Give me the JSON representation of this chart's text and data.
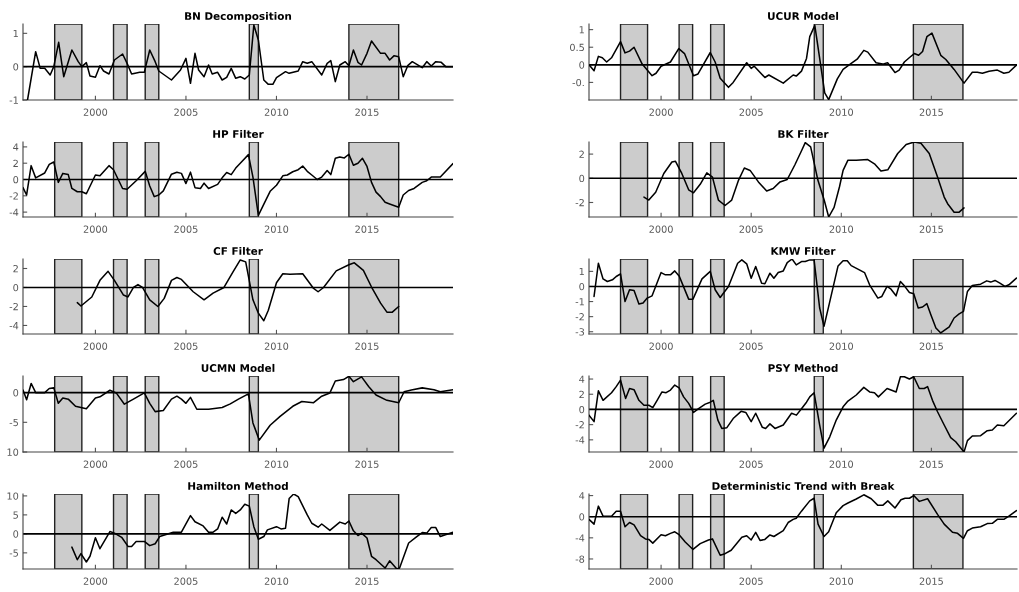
{
  "chart_data": [
    {
      "type": "line",
      "title": "BN Decomposition",
      "xlim": [
        1996,
        2019.75
      ],
      "xticks": [
        2000,
        2005,
        2010,
        2015
      ],
      "ylim": [
        -1,
        1.28
      ],
      "yticks": [
        -1,
        0,
        1
      ],
      "ref_lines": [
        {
          "axis": "y",
          "value": 0,
          "color": "#000000"
        }
      ],
      "bands": [
        {
          "axis": "x",
          "from": 1997.75,
          "to": 1999.25,
          "color": "#cccccc"
        },
        {
          "axis": "x",
          "from": 2001.0,
          "to": 2001.75,
          "color": "#cccccc"
        },
        {
          "axis": "x",
          "from": 2002.75,
          "to": 2003.5,
          "color": "#cccccc"
        },
        {
          "axis": "x",
          "from": 2008.5,
          "to": 2009.0,
          "color": "#cccccc"
        },
        {
          "axis": "x",
          "from": 2014.0,
          "to": 2016.75,
          "color": "#cccccc"
        }
      ],
      "series": [
        {
          "color": "#000000",
          "x": [
            1996.25,
            1996.7,
            1996.95,
            1997.2,
            1997.5,
            1997.7,
            1997.97,
            1998.25,
            1998.7,
            1999.05,
            1999.25,
            1999.5,
            1999.7,
            2000.0,
            2000.25,
            2000.45,
            2000.75,
            2001.05,
            2001.5,
            2001.75,
            2002.0,
            2002.45,
            2002.7,
            2003.0,
            2003.3,
            2003.5,
            2004.2,
            2004.7,
            2005.0,
            2005.25,
            2005.5,
            2005.7,
            2006.0,
            2006.25,
            2006.45,
            2006.75,
            2007.0,
            2007.25,
            2007.5,
            2007.75,
            2008.0,
            2008.25,
            2008.5,
            2008.75,
            2009.0,
            2009.3,
            2009.55,
            2009.8,
            2010.0,
            2010.5,
            2010.7,
            2011.2,
            2011.45,
            2011.7,
            2011.95,
            2012.5,
            2012.8,
            2013.0,
            2013.25,
            2013.5,
            2013.8,
            2014.0,
            2014.25,
            2014.5,
            2014.7,
            2015.0,
            2015.25,
            2015.75,
            2016.0,
            2016.25,
            2016.5,
            2016.75,
            2017.0,
            2017.25,
            2017.5,
            2018.05,
            2018.3,
            2018.55,
            2018.8,
            2019.1,
            2019.35,
            2019.75
          ],
          "values": [
            -1.0,
            0.45,
            -0.05,
            -0.05,
            -0.25,
            0,
            0.73,
            -0.3,
            0.5,
            0.15,
            0,
            0.12,
            -0.28,
            -0.32,
            0.03,
            -0.13,
            -0.22,
            0.2,
            0.38,
            0.1,
            -0.22,
            -0.17,
            -0.17,
            0.5,
            0.15,
            -0.13,
            -0.4,
            -0.1,
            0.25,
            -0.5,
            0.4,
            -0.1,
            -0.3,
            0.05,
            -0.22,
            -0.17,
            -0.4,
            -0.32,
            -0.05,
            -0.35,
            -0.3,
            -0.37,
            -0.25,
            1.25,
            0.8,
            -0.4,
            -0.53,
            -0.53,
            -0.33,
            -0.15,
            -0.2,
            -0.13,
            0.15,
            0.1,
            0.15,
            -0.25,
            0.1,
            0.18,
            -0.45,
            0.05,
            0.15,
            0.03,
            0.5,
            0.13,
            0.05,
            0.4,
            0.77,
            0.4,
            0.4,
            0.2,
            0.33,
            0.3,
            -0.3,
            0.03,
            0.15,
            -0.03,
            0.15,
            0.02,
            0.15,
            0.13,
            0,
            0
          ]
        }
      ]
    },
    {
      "type": "line",
      "title": "UCUR Model",
      "xlim": [
        1996,
        2019.75
      ],
      "xticks": [
        2000,
        2005,
        2010,
        2015
      ],
      "ylim": [
        -1,
        1.16
      ],
      "yticks": [
        {
          "value": -0.5,
          "label": "-0."
        },
        0,
        0.5,
        1
      ],
      "ref_lines": [
        {
          "axis": "y",
          "value": 0,
          "color": "#000000"
        }
      ],
      "bands": [
        {
          "axis": "x",
          "from": 1997.75,
          "to": 1999.25,
          "color": "#cccccc"
        },
        {
          "axis": "x",
          "from": 2001.0,
          "to": 2001.75,
          "color": "#cccccc"
        },
        {
          "axis": "x",
          "from": 2002.75,
          "to": 2003.5,
          "color": "#cccccc"
        },
        {
          "axis": "x",
          "from": 2008.5,
          "to": 2009.0,
          "color": "#cccccc"
        },
        {
          "axis": "x",
          "from": 2014.0,
          "to": 2016.75,
          "color": "#cccccc"
        }
      ],
      "series": [
        {
          "color": "#000000",
          "x": [
            1996.0,
            1996.28,
            1996.52,
            1996.74,
            1996.98,
            1997.25,
            1997.75,
            1998.0,
            1998.25,
            1998.5,
            1998.95,
            1999.5,
            1999.72,
            2000.0,
            2000.52,
            2000.98,
            2001.3,
            2001.8,
            2002.05,
            2002.73,
            2003.0,
            2003.28,
            2003.74,
            2004.0,
            2004.75,
            2005.0,
            2005.17,
            2005.76,
            2005.98,
            2006.78,
            2007.33,
            2007.5,
            2007.79,
            2008.07,
            2008.25,
            2008.53,
            2008.8,
            2009.08,
            2009.3,
            2009.78,
            2010.1,
            2010.55,
            2010.88,
            2011.25,
            2011.47,
            2011.93,
            2012.3,
            2012.57,
            2012.98,
            2013.21,
            2013.5,
            2013.77,
            2014.05,
            2014.29,
            2014.51,
            2014.75,
            2015.03,
            2015.52,
            2015.8,
            2016.26,
            2016.81,
            2017.27,
            2017.55,
            2017.83,
            2018.2,
            2018.66,
            2019.02,
            2019.3,
            2019.72
          ],
          "values": [
            0,
            -0.17,
            0.24,
            0.2,
            0.08,
            0.2,
            0.66,
            0.34,
            0.39,
            0.5,
            0.02,
            -0.31,
            -0.24,
            -0.04,
            0.08,
            0.46,
            0.32,
            -0.31,
            -0.26,
            0.35,
            0.08,
            -0.38,
            -0.64,
            -0.5,
            0.06,
            -0.1,
            -0.04,
            -0.36,
            -0.29,
            -0.52,
            -0.29,
            -0.32,
            -0.18,
            0.18,
            0.8,
            1.12,
            0.18,
            -0.8,
            -0.99,
            -0.4,
            -0.13,
            0.04,
            0.16,
            0.41,
            0.36,
            0.06,
            0.02,
            0.06,
            -0.22,
            -0.15,
            0.08,
            0.2,
            0.32,
            0.27,
            0.38,
            0.8,
            0.9,
            0.27,
            0.15,
            -0.13,
            -0.52,
            -0.21,
            -0.21,
            -0.24,
            -0.18,
            -0.15,
            -0.24,
            -0.21,
            -0.01
          ]
        }
      ]
    },
    {
      "type": "line",
      "title": "HP Filter",
      "xlim": [
        1996,
        2019.75
      ],
      "xticks": [
        2000,
        2005,
        2010,
        2015
      ],
      "ylim": [
        -4.6,
        4.6
      ],
      "yticks": [
        -4,
        -2,
        0,
        2,
        4
      ],
      "ref_lines": [
        {
          "axis": "y",
          "value": 0,
          "color": "#000000"
        }
      ],
      "bands": [
        {
          "axis": "x",
          "from": 1997.75,
          "to": 1999.25,
          "color": "#cccccc"
        },
        {
          "axis": "x",
          "from": 2001.0,
          "to": 2001.75,
          "color": "#cccccc"
        },
        {
          "axis": "x",
          "from": 2002.75,
          "to": 2003.5,
          "color": "#cccccc"
        },
        {
          "axis": "x",
          "from": 2008.5,
          "to": 2009.0,
          "color": "#cccccc"
        },
        {
          "axis": "x",
          "from": 2014.0,
          "to": 2016.75,
          "color": "#cccccc"
        }
      ],
      "series": [
        {
          "color": "#000000",
          "x": [
            1996.0,
            1996.2,
            1996.45,
            1996.7,
            1997.2,
            1997.45,
            1997.7,
            1997.95,
            1998.2,
            1998.5,
            1998.7,
            1999.0,
            1999.25,
            1999.5,
            2000.0,
            2000.25,
            2000.75,
            2001.0,
            2001.5,
            2001.75,
            2002.25,
            2002.75,
            2003.0,
            2003.25,
            2003.5,
            2003.75,
            2004.2,
            2004.5,
            2004.75,
            2005.0,
            2005.25,
            2005.5,
            2005.8,
            2006.0,
            2006.25,
            2006.75,
            2007.0,
            2007.25,
            2007.5,
            2007.75,
            2008.0,
            2008.45,
            2008.7,
            2009.0,
            2009.35,
            2009.65,
            2010.0,
            2010.35,
            2010.6,
            2010.9,
            2011.2,
            2011.45,
            2011.7,
            2011.95,
            2012.25,
            2012.5,
            2012.8,
            2013.0,
            2013.25,
            2013.5,
            2013.75,
            2014.0,
            2014.25,
            2014.5,
            2014.75,
            2015.0,
            2015.25,
            2015.5,
            2015.75,
            2016.0,
            2016.25,
            2016.75,
            2017.0,
            2017.3,
            2017.6,
            2018.05,
            2018.3,
            2018.55,
            2019.05,
            2019.75
          ],
          "values": [
            -1,
            -1.9,
            1.7,
            0.2,
            0.8,
            1.85,
            2.15,
            -0.35,
            0.75,
            0.6,
            -1.1,
            -1.5,
            -1.5,
            -1.75,
            0.55,
            0.45,
            1.7,
            1.2,
            -1.1,
            -1.2,
            -0.15,
            1.0,
            -0.8,
            -2.1,
            -1.9,
            -1.4,
            0.65,
            0.9,
            0.75,
            -0.5,
            0.9,
            -1,
            -1.1,
            -0.45,
            -1.1,
            -0.6,
            0.2,
            0.85,
            0.6,
            1.4,
            2.0,
            3.05,
            0.3,
            -4.4,
            -2.8,
            -1.45,
            -0.7,
            0.45,
            0.55,
            0.95,
            1.2,
            1.65,
            1.0,
            0.55,
            0,
            0.3,
            1.1,
            0.6,
            2.6,
            2.75,
            2.65,
            3.1,
            1.75,
            2.0,
            2.6,
            1.6,
            -0.35,
            -1.55,
            -2.1,
            -2.8,
            -3.0,
            -3.4,
            -1.9,
            -1.35,
            -1.1,
            -0.35,
            -0.15,
            0.3,
            0.3,
            1.95
          ]
        }
      ]
    },
    {
      "type": "line",
      "title": "BK Filter",
      "xlim": [
        1996,
        2019.75
      ],
      "xticks": [
        2000,
        2005,
        2010,
        2015
      ],
      "ylim": [
        -3.2,
        3.0
      ],
      "yticks": [
        -2,
        0,
        2
      ],
      "ref_lines": [
        {
          "axis": "y",
          "value": 0,
          "color": "#000000"
        }
      ],
      "bands": [
        {
          "axis": "x",
          "from": 1997.75,
          "to": 1999.25,
          "color": "#cccccc"
        },
        {
          "axis": "x",
          "from": 2001.0,
          "to": 2001.75,
          "color": "#cccccc"
        },
        {
          "axis": "x",
          "from": 2002.75,
          "to": 2003.5,
          "color": "#cccccc"
        },
        {
          "axis": "x",
          "from": 2008.5,
          "to": 2009.0,
          "color": "#cccccc"
        },
        {
          "axis": "x",
          "from": 2014.0,
          "to": 2016.75,
          "color": "#cccccc"
        }
      ],
      "series": [
        {
          "color": "#000000",
          "x": [
            1999.05,
            1999.32,
            1999.7,
            2000.15,
            2000.6,
            2000.8,
            2001.15,
            2001.53,
            2001.8,
            2002.17,
            2002.54,
            2002.85,
            2003.18,
            2003.55,
            2003.92,
            2004.3,
            2004.62,
            2004.94,
            2005.4,
            2005.86,
            2006.22,
            2006.6,
            2007.0,
            2007.42,
            2007.8,
            2008.0,
            2008.3,
            2008.7,
            2009.05,
            2009.3,
            2009.6,
            2009.9,
            2010.1,
            2010.37,
            2010.83,
            2011.47,
            2011.84,
            2012.2,
            2012.58,
            2013.13,
            2013.6,
            2014.05,
            2014.42,
            2014.88,
            2015.34,
            2015.71,
            2015.9,
            2016.26,
            2016.54,
            2016.81
          ],
          "values": [
            -1.55,
            -1.8,
            -1.15,
            0.4,
            1.35,
            1.4,
            0.4,
            -0.95,
            -1.2,
            -0.5,
            0.45,
            0.1,
            -1.8,
            -2.25,
            -1.8,
            -0.15,
            0.85,
            0.65,
            -0.3,
            -1.05,
            -0.85,
            -0.3,
            -0.1,
            1.1,
            2.3,
            2.95,
            2.6,
            -0.15,
            -1.8,
            -3.2,
            -2.4,
            -0.7,
            0.65,
            1.5,
            1.5,
            1.55,
            1.2,
            0.6,
            0.7,
            2.05,
            2.8,
            3.0,
            2.9,
            2.05,
            0.1,
            -1.55,
            -2.1,
            -2.8,
            -2.8,
            -2.45
          ]
        }
      ]
    },
    {
      "type": "line",
      "title": "CF Filter",
      "xlim": [
        1996,
        2019.75
      ],
      "xticks": [
        2000,
        2005,
        2010,
        2015
      ],
      "ylim": [
        -4.9,
        3
      ],
      "yticks": [
        -4,
        -2,
        0,
        2
      ],
      "ref_lines": [
        {
          "axis": "y",
          "value": 0,
          "color": "#000000"
        }
      ],
      "bands": [
        {
          "axis": "x",
          "from": 1997.75,
          "to": 1999.25,
          "color": "#cccccc"
        },
        {
          "axis": "x",
          "from": 2001.0,
          "to": 2001.75,
          "color": "#cccccc"
        },
        {
          "axis": "x",
          "from": 2002.75,
          "to": 2003.5,
          "color": "#cccccc"
        },
        {
          "axis": "x",
          "from": 2008.5,
          "to": 2009.0,
          "color": "#cccccc"
        },
        {
          "axis": "x",
          "from": 2014.0,
          "to": 2016.75,
          "color": "#cccccc"
        }
      ],
      "series": [
        {
          "color": "#000000",
          "x": [
            1999.0,
            1999.2,
            1999.8,
            2000.25,
            2000.7,
            2001.05,
            2001.55,
            2001.8,
            2002.1,
            2002.35,
            2002.6,
            2003.0,
            2003.45,
            2003.8,
            2004.2,
            2004.5,
            2004.75,
            2005.4,
            2006.0,
            2006.5,
            2007.1,
            2007.6,
            2008.0,
            2008.3,
            2008.7,
            2009.0,
            2009.3,
            2009.55,
            2010.0,
            2010.35,
            2010.75,
            2011.45,
            2012.05,
            2012.3,
            2012.6,
            2013.3,
            2014.0,
            2014.3,
            2014.8,
            2015.25,
            2015.75,
            2016.1,
            2016.4,
            2016.75
          ],
          "values": [
            -1.6,
            -1.95,
            -1.0,
            0.75,
            1.7,
            0.75,
            -0.8,
            -1.0,
            0,
            0.3,
            0,
            -1.3,
            -2.0,
            -1.15,
            0.75,
            1.05,
            0.85,
            -0.45,
            -1.3,
            -0.6,
            0,
            1.65,
            2.9,
            2.7,
            -1.3,
            -2.7,
            -3.5,
            -2.4,
            0.5,
            1.45,
            1.4,
            1.45,
            -0.1,
            -0.45,
            0,
            1.75,
            2.4,
            2.6,
            1.8,
            0.05,
            -1.65,
            -2.6,
            -2.6,
            -2.0
          ]
        }
      ]
    },
    {
      "type": "line",
      "title": "KMW Filter",
      "xlim": [
        1996,
        2019.75
      ],
      "xticks": [
        2000,
        2005,
        2010,
        2015
      ],
      "ylim": [
        -3.15,
        1.82
      ],
      "yticks": [
        -3,
        -2,
        -1,
        0,
        1
      ],
      "ref_lines": [
        {
          "axis": "y",
          "value": 0,
          "color": "#000000"
        }
      ],
      "bands": [
        {
          "axis": "x",
          "from": 1997.75,
          "to": 1999.25,
          "color": "#cccccc"
        },
        {
          "axis": "x",
          "from": 2001.0,
          "to": 2001.75,
          "color": "#cccccc"
        },
        {
          "axis": "x",
          "from": 2002.75,
          "to": 2003.5,
          "color": "#cccccc"
        },
        {
          "axis": "x",
          "from": 2008.5,
          "to": 2009.0,
          "color": "#cccccc"
        },
        {
          "axis": "x",
          "from": 2014.0,
          "to": 2016.75,
          "color": "#cccccc"
        }
      ],
      "series": [
        {
          "color": "#000000",
          "x": [
            1996.28,
            1996.52,
            1996.78,
            1997.02,
            1997.3,
            1997.51,
            1997.75,
            1998.0,
            1998.25,
            1998.5,
            1998.77,
            1999.0,
            1999.23,
            1999.5,
            2000.0,
            2000.24,
            2000.52,
            2000.76,
            2001.0,
            2001.53,
            2001.77,
            2002.27,
            2002.73,
            2003.0,
            2003.28,
            2003.74,
            2004.25,
            2004.48,
            2004.75,
            2005.0,
            2005.25,
            2005.58,
            2005.76,
            2006.04,
            2006.26,
            2006.5,
            2006.78,
            2007.0,
            2007.27,
            2007.5,
            2007.79,
            2008.0,
            2008.25,
            2008.49,
            2008.8,
            2009.04,
            2009.3,
            2009.82,
            2010.1,
            2010.33,
            2010.55,
            2011.0,
            2011.29,
            2011.57,
            2012.03,
            2012.25,
            2012.54,
            2012.76,
            2013.04,
            2013.28,
            2013.5,
            2013.78,
            2014.02,
            2014.27,
            2014.51,
            2014.75,
            2014.97,
            2015.25,
            2015.52,
            2015.99,
            2016.26,
            2016.54,
            2016.78,
            2017.0,
            2017.27,
            2017.73,
            2018.07,
            2018.29,
            2018.53,
            2018.8,
            2019.08,
            2019.3,
            2019.72
          ],
          "values": [
            -0.66,
            1.54,
            0.5,
            0.33,
            0.44,
            0.66,
            0.84,
            -1.0,
            -0.22,
            -0.26,
            -1.16,
            -1.1,
            -0.77,
            -0.62,
            0.92,
            0.77,
            0.77,
            1.03,
            0.7,
            -0.84,
            -0.84,
            0.5,
            1.0,
            -0.22,
            -0.73,
            0,
            1.54,
            1.76,
            1.5,
            0.55,
            1.32,
            0.22,
            0.18,
            0.88,
            0.55,
            0.92,
            1.03,
            1.58,
            1.82,
            1.43,
            1.65,
            1.65,
            1.76,
            1.76,
            -1.43,
            -2.64,
            -1.32,
            1.36,
            1.71,
            1.71,
            1.38,
            1.1,
            0.92,
            0.11,
            -0.77,
            -0.66,
            0,
            -0.18,
            -0.62,
            0.33,
            0.04,
            -0.4,
            -0.48,
            -1.43,
            -1.36,
            -1.14,
            -1.87,
            -2.75,
            -3.08,
            -2.68,
            -2.09,
            -1.82,
            -1.65,
            -0.33,
            0.07,
            0.15,
            0.37,
            0.29,
            0.4,
            0.22,
            0,
            0.11,
            0.55
          ]
        }
      ]
    },
    {
      "type": "line",
      "title": "UCMN Model",
      "xlim": [
        1996,
        2019.75
      ],
      "xticks": [
        2000,
        2005,
        2010,
        2015
      ],
      "ylim": [
        -10,
        2.8
      ],
      "yticks": [
        {
          "value": -10,
          "label": "10"
        },
        -5,
        0
      ],
      "ref_lines": [
        {
          "axis": "y",
          "value": 0,
          "color": "#000000"
        }
      ],
      "bands": [
        {
          "axis": "x",
          "from": 1997.75,
          "to": 1999.25,
          "color": "#cccccc"
        },
        {
          "axis": "x",
          "from": 2001.0,
          "to": 2001.75,
          "color": "#cccccc"
        },
        {
          "axis": "x",
          "from": 2002.75,
          "to": 2003.5,
          "color": "#cccccc"
        },
        {
          "axis": "x",
          "from": 2008.5,
          "to": 2009.0,
          "color": "#cccccc"
        },
        {
          "axis": "x",
          "from": 2014.0,
          "to": 2016.75,
          "color": "#cccccc"
        }
      ],
      "series": [
        {
          "color": "#000000",
          "x": [
            1996.0,
            1996.2,
            1996.45,
            1996.7,
            1997.2,
            1997.45,
            1997.7,
            1997.95,
            1998.2,
            1998.5,
            1998.9,
            1999.5,
            2000.0,
            2000.25,
            2000.8,
            2001.15,
            2001.6,
            2002.1,
            2002.7,
            2003.0,
            2003.3,
            2003.75,
            2004.2,
            2004.5,
            2004.75,
            2005.0,
            2005.25,
            2005.6,
            2006.25,
            2007.0,
            2007.45,
            2007.9,
            2008.45,
            2008.7,
            2009.05,
            2009.65,
            2010.2,
            2010.9,
            2011.4,
            2012.05,
            2012.5,
            2012.95,
            2013.25,
            2013.7,
            2014.0,
            2014.25,
            2014.7,
            2015.1,
            2015.5,
            2016.1,
            2016.75,
            2017.05,
            2017.45,
            2018.05,
            2018.7,
            2019.05,
            2019.75
          ],
          "values": [
            0.45,
            -1.2,
            1.55,
            0,
            0,
            0.7,
            0.8,
            -1.8,
            -0.9,
            -1.1,
            -2.3,
            -2.7,
            -0.9,
            -0.7,
            0.4,
            -0.05,
            -1.95,
            -1.1,
            -0.05,
            -1.8,
            -3.2,
            -3.0,
            -1.1,
            -0.6,
            -1.1,
            -1.8,
            -0.8,
            -2.8,
            -2.8,
            -2.5,
            -1.9,
            -1.1,
            -0.2,
            -5.1,
            -8.0,
            -5.5,
            -4.0,
            -2.3,
            -1.5,
            -1.7,
            -0.6,
            -0.05,
            1.95,
            2.2,
            2.75,
            1.85,
            2.65,
            1.0,
            -0.4,
            -1.3,
            -1.7,
            0.15,
            0.45,
            0.8,
            0.5,
            0.15,
            0.5
          ]
        }
      ]
    },
    {
      "type": "line",
      "title": "PSY Method",
      "xlim": [
        1996,
        2019.75
      ],
      "xticks": [
        2000,
        2005,
        2010,
        2015
      ],
      "ylim": [
        -5.6,
        4.4
      ],
      "yticks": [
        -4,
        -2,
        0,
        2,
        4
      ],
      "ref_lines": [
        {
          "axis": "y",
          "value": 0,
          "color": "#000000"
        }
      ],
      "bands": [
        {
          "axis": "x",
          "from": 1997.75,
          "to": 1999.25,
          "color": "#cccccc"
        },
        {
          "axis": "x",
          "from": 2001.0,
          "to": 2001.75,
          "color": "#cccccc"
        },
        {
          "axis": "x",
          "from": 2002.75,
          "to": 2003.5,
          "color": "#cccccc"
        },
        {
          "axis": "x",
          "from": 2008.5,
          "to": 2009.0,
          "color": "#cccccc"
        },
        {
          "axis": "x",
          "from": 2014.0,
          "to": 2016.75,
          "color": "#cccccc"
        }
      ],
      "series": [
        {
          "color": "#000000",
          "x": [
            1996.0,
            1996.28,
            1996.52,
            1996.78,
            1997.25,
            1997.51,
            1997.75,
            1998.03,
            1998.25,
            1998.5,
            1998.77,
            1999.05,
            1999.32,
            1999.54,
            1999.78,
            2000.05,
            2000.28,
            2000.52,
            2000.76,
            2001.0,
            2001.25,
            2001.53,
            2001.8,
            2002.08,
            2002.45,
            2002.73,
            2002.9,
            2003.15,
            2003.37,
            2003.65,
            2004.0,
            2004.44,
            2004.7,
            2005.0,
            2005.25,
            2005.62,
            2005.8,
            2006.04,
            2006.32,
            2006.78,
            2007.24,
            2007.51,
            2007.79,
            2008.07,
            2008.25,
            2008.49,
            2008.8,
            2009.04,
            2009.36,
            2009.72,
            2010.1,
            2010.37,
            2010.83,
            2011.25,
            2011.57,
            2011.84,
            2012.06,
            2012.54,
            2012.76,
            2013.04,
            2013.28,
            2013.5,
            2013.78,
            2014.02,
            2014.33,
            2014.6,
            2014.79,
            2015.06,
            2015.34,
            2015.71,
            2016.07,
            2016.35,
            2016.81,
            2017.0,
            2017.27,
            2017.73,
            2018.1,
            2018.38,
            2018.66,
            2019.02,
            2019.72
          ],
          "values": [
            -0.75,
            -1.6,
            2.45,
            1.2,
            2.2,
            3.0,
            3.85,
            1.45,
            2.75,
            2.6,
            1.2,
            0.55,
            0.55,
            0.25,
            1.2,
            2.3,
            2.2,
            2.55,
            3.2,
            2.85,
            1.65,
            0.8,
            -0.4,
            0.1,
            0.7,
            0.95,
            1.2,
            -1.4,
            -2.5,
            -2.4,
            -1.2,
            -0.25,
            -0.4,
            -1.6,
            -0.5,
            -2.35,
            -2.5,
            -1.9,
            -2.5,
            -2.05,
            -0.5,
            -0.75,
            0.1,
            0.95,
            1.65,
            2.2,
            -2.05,
            -5.1,
            -3.6,
            -1.4,
            0.35,
            1.1,
            1.9,
            2.9,
            2.3,
            2.2,
            1.65,
            2.75,
            2.55,
            2.3,
            4.3,
            4.3,
            4.0,
            4.3,
            2.75,
            2.75,
            3.0,
            1.2,
            -0.3,
            -2.05,
            -3.7,
            -4.25,
            -5.6,
            -4.1,
            -3.5,
            -3.45,
            -2.8,
            -2.7,
            -2.05,
            -2.15,
            -0.5
          ]
        }
      ]
    },
    {
      "type": "line",
      "title": "Hamilton Method",
      "xlim": [
        1996,
        2019.75
      ],
      "xticks": [
        2000,
        2005,
        2010,
        2015
      ],
      "ylim": [
        -9.25,
        10.5
      ],
      "yticks": [
        -5,
        0,
        5,
        10
      ],
      "ref_lines": [
        {
          "axis": "y",
          "value": 0,
          "color": "#000000"
        }
      ],
      "bands": [
        {
          "axis": "x",
          "from": 1997.75,
          "to": 1999.25,
          "color": "#cccccc"
        },
        {
          "axis": "x",
          "from": 2001.0,
          "to": 2001.75,
          "color": "#cccccc"
        },
        {
          "axis": "x",
          "from": 2002.75,
          "to": 2003.5,
          "color": "#cccccc"
        },
        {
          "axis": "x",
          "from": 2008.5,
          "to": 2009.0,
          "color": "#cccccc"
        },
        {
          "axis": "x",
          "from": 2014.0,
          "to": 2016.75,
          "color": "#cccccc"
        }
      ],
      "series": [
        {
          "color": "#000000",
          "x": [
            1998.7,
            1999.0,
            1999.2,
            1999.5,
            1999.7,
            2000.0,
            2000.25,
            2000.8,
            2001.05,
            2001.45,
            2001.8,
            2002.0,
            2002.25,
            2002.7,
            2003.0,
            2003.3,
            2003.55,
            2004.3,
            2004.75,
            2005.25,
            2005.5,
            2005.95,
            2006.25,
            2006.5,
            2006.75,
            2007.0,
            2007.25,
            2007.5,
            2007.75,
            2008.0,
            2008.25,
            2008.5,
            2008.75,
            2009.0,
            2009.3,
            2009.5,
            2010.0,
            2010.25,
            2010.5,
            2010.7,
            2010.95,
            2011.2,
            2011.7,
            2011.95,
            2012.3,
            2012.5,
            2012.95,
            2013.5,
            2013.8,
            2014.0,
            2014.25,
            2014.5,
            2014.7,
            2015.0,
            2015.25,
            2015.5,
            2016.0,
            2016.25,
            2016.65,
            2016.8,
            2017.3,
            2017.75,
            2018.05,
            2018.3,
            2018.55,
            2018.8,
            2019.05,
            2019.75
          ],
          "values": [
            -3.5,
            -6.8,
            -5.2,
            -7.4,
            -5.9,
            -1.0,
            -3.9,
            0.6,
            0.2,
            -0.9,
            -3.3,
            -3.3,
            -2.0,
            -2.0,
            -3.1,
            -2.6,
            -0.7,
            0.45,
            0.45,
            4.8,
            3.2,
            2.1,
            0.45,
            0.45,
            1.3,
            4.4,
            2.6,
            6.3,
            5.4,
            6.3,
            7.8,
            7.3,
            1.9,
            -1.4,
            -0.7,
            1.05,
            1.9,
            1.3,
            1.5,
            9.3,
            10.5,
            9.8,
            5.0,
            2.8,
            1.75,
            2.6,
            0.9,
            3.1,
            2.6,
            3.4,
            0.8,
            -0.45,
            0.2,
            -1.1,
            -5.9,
            -6.8,
            -9.0,
            -7.1,
            -9.25,
            -9.0,
            -2.4,
            -0.7,
            0.35,
            0.2,
            1.65,
            1.65,
            -0.7,
            0.45
          ]
        }
      ]
    },
    {
      "type": "line",
      "title": "Deterministic Trend with Break",
      "xlim": [
        1996,
        2019.75
      ],
      "xticks": [
        2000,
        2005,
        2010,
        2015
      ],
      "ylim": [
        -9.9,
        4.3
      ],
      "yticks": [
        -8,
        -4,
        0,
        4
      ],
      "ref_lines": [
        {
          "axis": "y",
          "value": 0,
          "color": "#000000"
        }
      ],
      "bands": [
        {
          "axis": "x",
          "from": 1997.75,
          "to": 1999.25,
          "color": "#cccccc"
        },
        {
          "axis": "x",
          "from": 2001.0,
          "to": 2001.75,
          "color": "#cccccc"
        },
        {
          "axis": "x",
          "from": 2002.75,
          "to": 2003.5,
          "color": "#cccccc"
        },
        {
          "axis": "x",
          "from": 2008.5,
          "to": 2009.0,
          "color": "#cccccc"
        },
        {
          "axis": "x",
          "from": 2014.0,
          "to": 2016.75,
          "color": "#cccccc"
        }
      ],
      "series": [
        {
          "color": "#000000",
          "x": [
            1996.0,
            1996.28,
            1996.52,
            1996.78,
            1997.25,
            1997.51,
            1997.75,
            1998.0,
            1998.25,
            1998.5,
            1998.86,
            1999.13,
            1999.32,
            1999.54,
            2000.0,
            2000.24,
            2000.52,
            2000.76,
            2001.0,
            2001.34,
            2001.77,
            2002.17,
            2002.63,
            2002.85,
            2003.28,
            2003.55,
            2003.89,
            2004.48,
            2004.75,
            2005.0,
            2005.25,
            2005.49,
            2005.76,
            2006.04,
            2006.26,
            2006.78,
            2007.05,
            2007.33,
            2007.5,
            2007.79,
            2008.25,
            2008.49,
            2008.71,
            2009.04,
            2009.3,
            2009.72,
            2010.1,
            2010.37,
            2010.83,
            2011.25,
            2011.66,
            2012.03,
            2012.3,
            2012.58,
            2012.98,
            2013.31,
            2013.54,
            2013.78,
            2014.02,
            2014.33,
            2014.79,
            2015.34,
            2015.71,
            2016.17,
            2016.45,
            2016.78,
            2017.0,
            2017.27,
            2017.73,
            2018.1,
            2018.38,
            2018.66,
            2019.02,
            2019.3,
            2019.72
          ],
          "values": [
            -0.5,
            -1.4,
            2.0,
            0.1,
            0.1,
            1.05,
            1.05,
            -1.9,
            -1.1,
            -1.55,
            -3.6,
            -4.2,
            -4.3,
            -5.0,
            -3.4,
            -3.6,
            -3.15,
            -2.85,
            -3.4,
            -4.8,
            -6.2,
            -5.1,
            -4.4,
            -4.2,
            -7.3,
            -7.0,
            -6.35,
            -3.9,
            -3.6,
            -4.4,
            -2.95,
            -4.5,
            -4.3,
            -3.45,
            -3.75,
            -2.65,
            -1.1,
            -0.5,
            -0.3,
            1.05,
            3.0,
            3.5,
            -1.4,
            -3.75,
            -2.85,
            0.75,
            2.1,
            2.6,
            3.35,
            4.15,
            3.4,
            2.15,
            2.15,
            3.0,
            1.65,
            3.2,
            3.5,
            3.5,
            4.0,
            2.9,
            3.4,
            0.45,
            -1.4,
            -2.95,
            -3.15,
            -4.1,
            -2.65,
            -2.15,
            -1.9,
            -1.3,
            -1.25,
            -0.5,
            -0.5,
            0.1,
            1.15
          ]
        }
      ]
    }
  ]
}
